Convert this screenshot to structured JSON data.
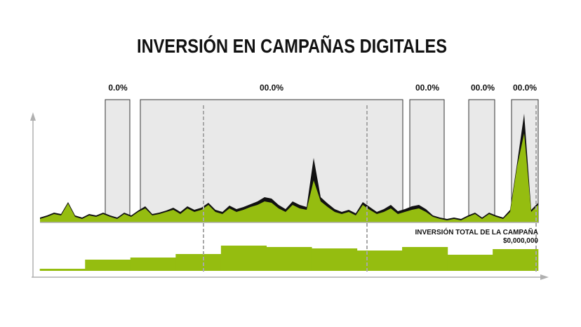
{
  "chart_data": [
    {
      "type": "area",
      "title": "INVERSIÓN EN CAMPAÑAS DIGITALES",
      "period_labels": [
        "0.0%",
        "00.0%",
        "00.0%",
        "00.0%",
        "00.0%"
      ],
      "ylim": [
        0,
        170
      ],
      "series": [
        {
          "color": "#111111",
          "values": [
            7,
            10,
            14,
            12,
            29,
            10,
            7,
            12,
            10,
            14,
            10,
            7,
            14,
            10,
            17,
            23,
            12,
            14,
            17,
            21,
            15,
            23,
            18,
            21,
            28,
            18,
            15,
            24,
            19,
            22,
            26,
            30,
            36,
            34,
            25,
            19,
            30,
            25,
            22,
            92,
            36,
            27,
            19,
            15,
            18,
            13,
            29,
            22,
            15,
            19,
            25,
            16,
            19,
            23,
            25,
            19,
            10,
            7,
            5,
            7,
            5,
            10,
            14,
            7,
            14,
            10,
            7,
            18,
            85,
            155,
            18,
            28
          ]
        },
        {
          "color": "#95bd10",
          "values": [
            5,
            8,
            12,
            10,
            27,
            8,
            5,
            10,
            8,
            12,
            8,
            5,
            12,
            8,
            15,
            20,
            10,
            12,
            15,
            18,
            12,
            20,
            15,
            18,
            25,
            15,
            12,
            20,
            15,
            18,
            22,
            25,
            30,
            28,
            20,
            15,
            25,
            20,
            18,
            60,
            30,
            22,
            15,
            12,
            15,
            10,
            25,
            18,
            12,
            15,
            20,
            12,
            15,
            18,
            20,
            15,
            8,
            5,
            3,
            5,
            3,
            8,
            12,
            5,
            12,
            8,
            5,
            15,
            80,
            127,
            15,
            25
          ]
        }
      ]
    },
    {
      "type": "step",
      "annotation": "INVERSIÓN TOTAL DE LA CAMPAÑA",
      "total": "$0,000,000",
      "color": "#95bd10",
      "ylim": [
        0,
        60
      ],
      "values": [
        3,
        16,
        19,
        24,
        36,
        34,
        32,
        29,
        34,
        23,
        31
      ]
    }
  ]
}
